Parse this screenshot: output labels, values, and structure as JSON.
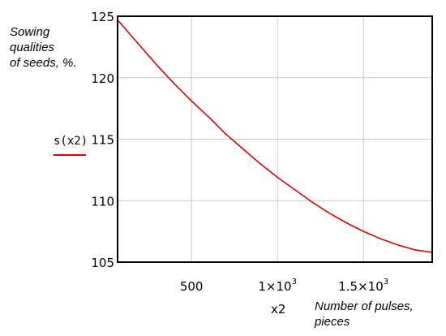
{
  "chart_data": {
    "type": "line",
    "xlabel": "x2",
    "ylabel": "",
    "xlim": [
      70,
      1900
    ],
    "ylim": [
      105,
      125
    ],
    "x_ticks": [
      500,
      1000,
      1500
    ],
    "x_tick_labels": [
      "500",
      "1×10",
      "1.5×10"
    ],
    "x_tick_exponent": "3",
    "y_ticks": [
      105,
      110,
      115,
      120,
      125
    ],
    "y_tick_labels": [
      "105",
      "110",
      "115",
      "120",
      "125"
    ],
    "grid": true,
    "series": [
      {
        "name": "s(x2)",
        "color": "#dd0000",
        "x": [
          70,
          200,
          300,
          400,
          500,
          600,
          700,
          800,
          900,
          1000,
          1100,
          1200,
          1300,
          1400,
          1500,
          1600,
          1700,
          1800,
          1900
        ],
        "y": [
          124.7,
          122.6,
          121.0,
          119.5,
          118.1,
          116.8,
          115.4,
          114.2,
          113.0,
          111.9,
          110.9,
          109.9,
          109.0,
          108.2,
          107.5,
          106.9,
          106.4,
          106.0,
          105.8
        ]
      }
    ]
  },
  "annotations": {
    "y_axis_caption": "Sowing\nqualities\nof seeds, %.",
    "x_axis_caption": "Number of pulses,\npieces",
    "x_axis_var": "x2",
    "legend_label": "s(x2)"
  }
}
